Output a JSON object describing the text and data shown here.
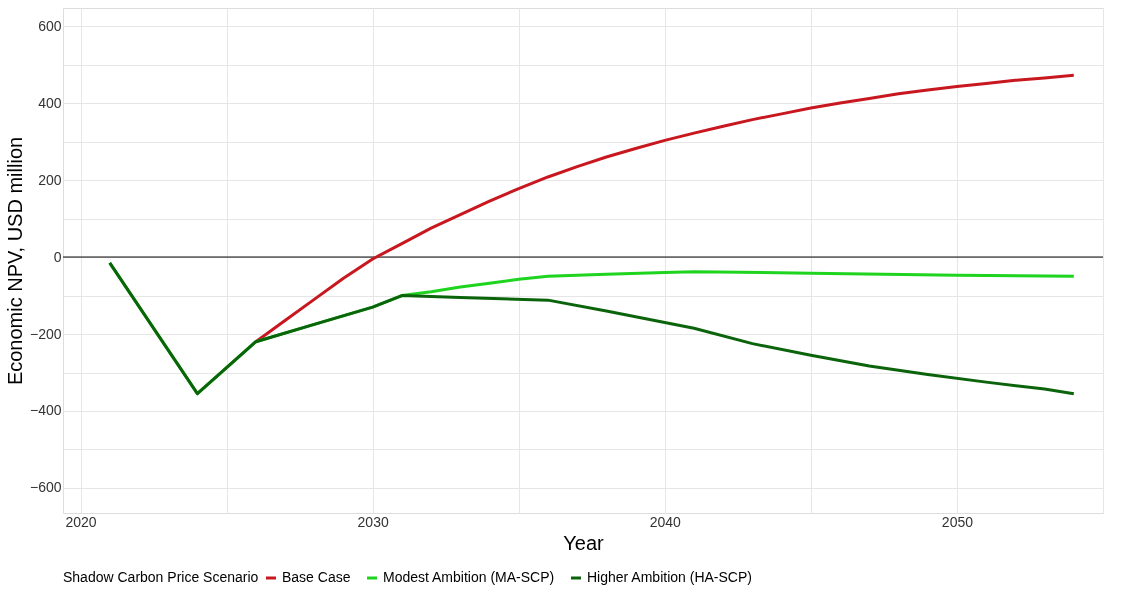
{
  "chart_data": {
    "type": "line",
    "xlabel": "Year",
    "ylabel": "Economic NPV, USD million",
    "legend_title": "Shadow Carbon Price Scenario",
    "legend": "bottom",
    "grid": true,
    "line_style": "solid",
    "marker": "none",
    "xlim": [
      2019.4,
      2055
    ],
    "ylim": [
      -665,
      647
    ],
    "xticks": [
      2020,
      {
        "value": 2025,
        "label": null
      },
      2030,
      {
        "value": 2035,
        "label": null
      },
      2040,
      {
        "value": 2045,
        "label": null
      },
      2050,
      {
        "value": 2055,
        "label": null
      }
    ],
    "yticks": [
      -600,
      {
        "value": -500,
        "label": null
      },
      -400,
      {
        "value": -300,
        "label": null
      },
      -200,
      {
        "value": -100,
        "label": null
      },
      0,
      {
        "value": 100,
        "label": null
      },
      200,
      {
        "value": 300,
        "label": null
      },
      400,
      {
        "value": 500,
        "label": null
      },
      600
    ],
    "ref_lines": [
      {
        "axis": "y",
        "value": 0,
        "color": "#000000"
      }
    ],
    "series": [
      {
        "name": "Base Case",
        "color": "#c8171e",
        "x": [
          2026,
          2027,
          2028,
          2029,
          2030,
          2031,
          2032,
          2033,
          2034,
          2035,
          2036,
          2037,
          2038,
          2039,
          2040,
          2041,
          2042,
          2043,
          2044,
          2045,
          2046,
          2047,
          2048,
          2049,
          2050,
          2051,
          2052,
          2053,
          2054
        ],
        "values": [
          -220,
          -165,
          -110,
          -55,
          -5,
          35,
          75,
          110,
          145,
          178,
          208,
          235,
          260,
          282,
          303,
          322,
          340,
          357,
          372,
          387,
          400,
          412,
          424,
          434,
          443,
          451,
          459,
          465,
          472
        ]
      },
      {
        "name": "Modest Ambition (MA-SCP)",
        "color": "#1ed41e",
        "x": [
          2021,
          2024,
          2026,
          2028,
          2030,
          2031,
          2032,
          2033,
          2034,
          2035,
          2036,
          2038,
          2040,
          2041,
          2045,
          2050,
          2054
        ],
        "values": [
          -15,
          -355,
          -220,
          -175,
          -130,
          -100,
          -90,
          -78,
          -68,
          -58,
          -50,
          -45,
          -40,
          -38,
          -42,
          -47,
          -50
        ]
      },
      {
        "name": "Higher Ambition (HA-SCP)",
        "color": "#0b640b",
        "x": [
          2021,
          2024,
          2026,
          2028,
          2030,
          2031,
          2033,
          2036,
          2038,
          2040,
          2041,
          2043,
          2045,
          2047,
          2049,
          2051,
          2053,
          2054
        ],
        "values": [
          -15,
          -355,
          -220,
          -175,
          -130,
          -100,
          -105,
          -112,
          -140,
          -170,
          -185,
          -225,
          -255,
          -283,
          -305,
          -325,
          -343,
          -355
        ]
      }
    ]
  }
}
